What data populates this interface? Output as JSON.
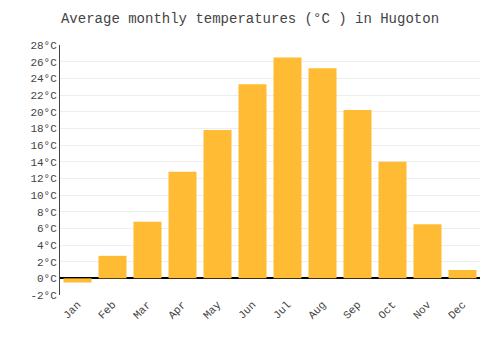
{
  "chart_data": {
    "type": "bar",
    "title": "Average monthly temperatures (°C ) in Hugoton",
    "categories": [
      "Jan",
      "Feb",
      "Mar",
      "Apr",
      "May",
      "Jun",
      "Jul",
      "Aug",
      "Sep",
      "Oct",
      "Nov",
      "Dec"
    ],
    "values": [
      -0.5,
      2.7,
      6.8,
      12.8,
      17.8,
      23.3,
      26.5,
      25.2,
      20.2,
      14.0,
      6.5,
      1.0
    ],
    "color": "#FFBB33",
    "ylim": [
      -2,
      28
    ],
    "yticks": [
      {
        "value": -2,
        "label": "-2°C"
      },
      {
        "value": 0,
        "label": "0°C"
      },
      {
        "value": 2,
        "label": "2°C"
      },
      {
        "value": 4,
        "label": "4°C"
      },
      {
        "value": 6,
        "label": "6°C"
      },
      {
        "value": 8,
        "label": "8°C"
      },
      {
        "value": 10,
        "label": "10°C"
      },
      {
        "value": 12,
        "label": "12°C"
      },
      {
        "value": 14,
        "label": "14°C"
      },
      {
        "value": 16,
        "label": "16°C"
      },
      {
        "value": 18,
        "label": "18°C"
      },
      {
        "value": 20,
        "label": "20°C"
      },
      {
        "value": 22,
        "label": "22°C"
      },
      {
        "value": 24,
        "label": "24°C"
      },
      {
        "value": 26,
        "label": "26°C"
      },
      {
        "value": 28,
        "label": "28°C"
      }
    ],
    "grid": true
  }
}
